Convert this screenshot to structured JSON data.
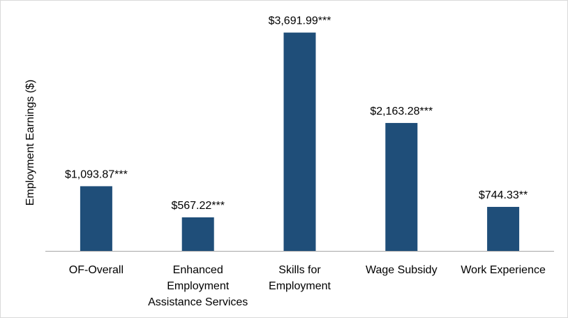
{
  "chart_data": {
    "type": "bar",
    "title": "",
    "xlabel": "",
    "ylabel": "Employment Earnings ($)",
    "ylim": [
      0,
      3900
    ],
    "grid": false,
    "legend": "none",
    "bar_color": "#1f4e79",
    "categories": [
      [
        "OF-Overall"
      ],
      [
        "Enhanced",
        "Employment",
        "Assistance Services"
      ],
      [
        "Skills for",
        "Employment"
      ],
      [
        "Wage Subsidy"
      ],
      [
        "Work Experience"
      ]
    ],
    "values": [
      1093.87,
      567.22,
      3691.99,
      2163.28,
      744.33
    ],
    "data_labels": [
      "$1,093.87***",
      "$567.22***",
      "$3,691.99***",
      "$2,163.28***",
      "$744.33**"
    ]
  }
}
